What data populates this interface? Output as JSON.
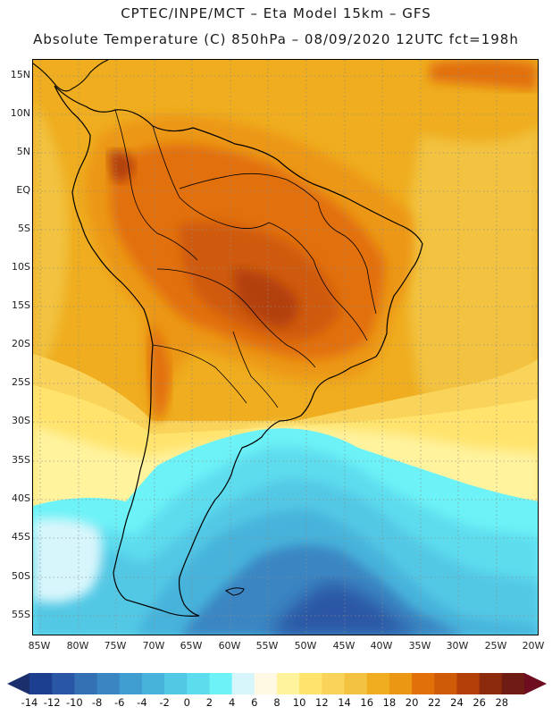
{
  "title_line1": "CPTEC/INPE/MCT –  Eta Model 15km – GFS",
  "title_line2": "Absolute Temperature (C) 850hPa – 08/09/2020 12UTC fct=198h",
  "lat_labels": [
    "15N",
    "10N",
    "5N",
    "EQ",
    "5S",
    "10S",
    "15S",
    "20S",
    "25S",
    "30S",
    "35S",
    "40S",
    "45S",
    "50S",
    "55S"
  ],
  "lon_labels": [
    "85W",
    "80W",
    "75W",
    "70W",
    "65W",
    "60W",
    "55W",
    "50W",
    "45W",
    "40W",
    "35W",
    "30W",
    "25W",
    "20W"
  ],
  "colorbar": {
    "labels": [
      "-14",
      "-12",
      "-10",
      "-8",
      "-6",
      "-4",
      "-2",
      "0",
      "2",
      "4",
      "6",
      "8",
      "10",
      "12",
      "14",
      "16",
      "18",
      "20",
      "22",
      "24",
      "26",
      "28"
    ],
    "colors": [
      "#1c3f8f",
      "#2a57a5",
      "#3370b4",
      "#3a86c2",
      "#3f9dcf",
      "#47b3db",
      "#52c8e5",
      "#5ddcee",
      "#6cf2f7",
      "#d7f6fb",
      "#fff8e2",
      "#fff39e",
      "#ffe36c",
      "#fad45a",
      "#f2c240",
      "#efad1f",
      "#ec9713",
      "#e2700a",
      "#cf5a08",
      "#b24007",
      "#8b2a0c",
      "#6e1c14"
    ],
    "left_arrow_color": "#1a2f6b",
    "right_arrow_color": "#6e0d1f"
  }
}
